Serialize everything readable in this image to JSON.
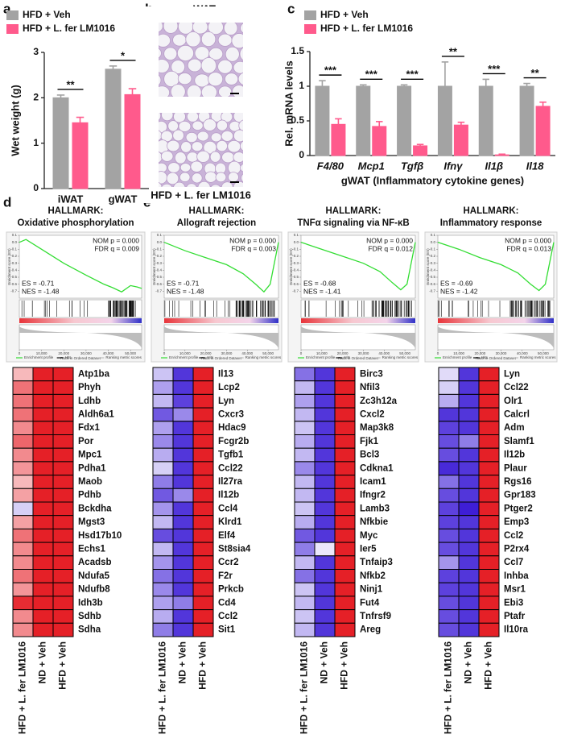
{
  "panel_labels": [
    "a",
    "b",
    "c",
    "d",
    "e"
  ],
  "histology": {
    "title": "gWAT",
    "images": [
      "HFD + Veh",
      "HFD + L. fer LM1016"
    ]
  },
  "chart_data": [
    {
      "type": "bar",
      "ylabel": "Wet weight (g)",
      "categories": [
        "iWAT",
        "gWAT"
      ],
      "series": [
        {
          "name": "HFD + Veh",
          "color": "#a3a3a3",
          "values": [
            2.0,
            2.63
          ],
          "errors": [
            0.06,
            0.07
          ]
        },
        {
          "name": "HFD + L. fer LM1016",
          "color": "#ff5a8c",
          "values": [
            1.45,
            2.07
          ],
          "errors": [
            0.12,
            0.13
          ]
        }
      ],
      "significance": [
        "**",
        "*"
      ],
      "ylim": [
        0,
        3
      ],
      "yticks": [
        0,
        1,
        2,
        3
      ]
    },
    {
      "type": "bar",
      "ylabel": "Rel. mRNA levels",
      "xlabel": "gWAT (Inflammatory cytokine genes)",
      "categories": [
        "F4/80",
        "Mcp1",
        "Tgfβ",
        "Ifnγ",
        "Il1β",
        "Il18"
      ],
      "category_style": "italic",
      "series": [
        {
          "name": "HFD + Veh",
          "color": "#a3a3a3",
          "values": [
            1.0,
            1.0,
            1.0,
            1.0,
            1.0,
            1.0
          ],
          "errors": [
            0.08,
            0.02,
            0.02,
            0.35,
            0.1,
            0.04
          ]
        },
        {
          "name": "HFD + L. fer LM1016",
          "color": "#ff5a8c",
          "values": [
            0.45,
            0.42,
            0.14,
            0.44,
            0.01,
            0.71
          ],
          "errors": [
            0.08,
            0.07,
            0.02,
            0.04,
            0.01,
            0.06
          ]
        }
      ],
      "significance": [
        "***",
        "***",
        "***",
        "**",
        "***",
        "**"
      ],
      "ylim": [
        0,
        1.5
      ],
      "yticks": [
        0,
        0.5,
        1,
        1.5
      ]
    },
    {
      "type": "line",
      "title": "HALLMARK:",
      "subtitle": "Oxidative phosphorylation",
      "annotations": [
        "NOM p = 0.000",
        "FDR q = 0.009",
        "ES = -0.71",
        "NES = -1.48"
      ],
      "ylabel": "Enrichment score (ES)",
      "xlabel": "Rank in Ordered Dataset",
      "legend": [
        "Enrichment profile",
        "Hits",
        "Ranking metric scores"
      ],
      "color": "#33dd33",
      "x": [
        0,
        3000,
        10000,
        20000,
        30000,
        38000,
        42000,
        46000,
        50000,
        53000,
        55000
      ],
      "y": [
        0,
        0.04,
        -0.1,
        -0.3,
        -0.47,
        -0.6,
        -0.65,
        -0.71,
        -0.62,
        -0.64,
        -0.66
      ],
      "xlim": [
        0,
        55000
      ],
      "ylim": [
        -0.8,
        0.1
      ],
      "xticks": [
        0,
        {
          "value": 10000,
          "label": "10,000"
        },
        {
          "value": 20000,
          "label": "20,000"
        },
        {
          "value": 30000,
          "label": "30,000"
        },
        {
          "value": 40000,
          "label": "40,000"
        },
        {
          "value": 50000,
          "label": "50,000"
        }
      ],
      "yticks": [
        0.1,
        {
          "value": 0,
          "label": "0.0"
        },
        -0.1,
        -0.2,
        -0.3,
        -0.4,
        -0.5,
        -0.6,
        -0.7
      ]
    },
    {
      "type": "line",
      "title": "HALLMARK:",
      "subtitle": "Allograft rejection",
      "annotations": [
        "NOM p = 0.000",
        "FDR q = 0.003",
        "ES = -0.71",
        "NES = -1.48"
      ],
      "ylabel": "Enrichment score (ES)",
      "xlabel": "Rank in Ordered Dataset",
      "legend": [
        "Enrichment profile",
        "Hits",
        "Ranking metric scores"
      ],
      "color": "#33dd33",
      "x": [
        0,
        10000,
        20000,
        30000,
        38000,
        44000,
        48000,
        51000,
        53000,
        55000
      ],
      "y": [
        0,
        -0.12,
        -0.22,
        -0.32,
        -0.45,
        -0.6,
        -0.71,
        -0.6,
        -0.3,
        0
      ],
      "xlim": [
        0,
        55000
      ],
      "ylim": [
        -0.8,
        0.1
      ],
      "xticks": [
        0,
        {
          "value": 10000,
          "label": "10,000"
        },
        {
          "value": 20000,
          "label": "20,000"
        },
        {
          "value": 30000,
          "label": "30,000"
        },
        {
          "value": 40000,
          "label": "40,000"
        },
        {
          "value": 50000,
          "label": "50,000"
        }
      ],
      "yticks": [
        0.1,
        {
          "value": 0,
          "label": "0.0"
        },
        -0.1,
        -0.2,
        -0.3,
        -0.4,
        -0.5,
        -0.6,
        -0.7
      ]
    },
    {
      "type": "line",
      "title": "HALLMARK:",
      "subtitle": "TNFα signaling via NF-κB",
      "annotations": [
        "NOM p = 0.000",
        "FDR q = 0.012",
        "ES = -0.68",
        "NES = -1.41"
      ],
      "ylabel": "Enrichment score (ES)",
      "xlabel": "Rank in Ordered Dataset",
      "legend": [
        "Enrichment profile",
        "Hits",
        "Ranking metric scores"
      ],
      "color": "#33dd33",
      "x": [
        0,
        10000,
        20000,
        30000,
        38000,
        44000,
        48000,
        51000,
        53000,
        55000
      ],
      "y": [
        0,
        -0.1,
        -0.2,
        -0.3,
        -0.42,
        -0.58,
        -0.68,
        -0.6,
        -0.3,
        0
      ],
      "xlim": [
        0,
        55000
      ],
      "ylim": [
        -0.8,
        0.1
      ],
      "xticks": [
        0,
        {
          "value": 10000,
          "label": "10,000"
        },
        {
          "value": 20000,
          "label": "20,000"
        },
        {
          "value": 30000,
          "label": "30,000"
        },
        {
          "value": 40000,
          "label": "40,000"
        },
        {
          "value": 50000,
          "label": "50,000"
        }
      ],
      "yticks": [
        0.1,
        {
          "value": 0,
          "label": "0.0"
        },
        -0.1,
        -0.2,
        -0.3,
        -0.4,
        -0.5,
        -0.6,
        -0.7
      ]
    },
    {
      "type": "line",
      "title": "HALLMARK:",
      "subtitle": "Inflammatory response",
      "annotations": [
        "NOM p = 0.000",
        "FDR q = 0.013",
        "ES = -0.69",
        "NES = -1.42"
      ],
      "ylabel": "Enrichment score (ES)",
      "xlabel": "Rank in Ordered Dataset",
      "legend": [
        "Enrichment profile",
        "Hits",
        "Ranking metric scores"
      ],
      "color": "#33dd33",
      "x": [
        0,
        10000,
        20000,
        30000,
        38000,
        44000,
        48000,
        51000,
        53000,
        55000
      ],
      "y": [
        0,
        -0.1,
        -0.22,
        -0.32,
        -0.44,
        -0.6,
        -0.69,
        -0.6,
        -0.3,
        0
      ],
      "xlim": [
        0,
        55000
      ],
      "ylim": [
        -0.8,
        0.1
      ],
      "xticks": [
        0,
        {
          "value": 10000,
          "label": "10,000"
        },
        {
          "value": 20000,
          "label": "20,000"
        },
        {
          "value": 30000,
          "label": "30,000"
        },
        {
          "value": 40000,
          "label": "40,000"
        },
        {
          "value": 50000,
          "label": "50,000"
        }
      ],
      "yticks": [
        0.1,
        {
          "value": 0,
          "label": "0.0"
        },
        -0.1,
        -0.2,
        -0.3,
        -0.4,
        -0.5,
        -0.6,
        -0.7
      ]
    },
    {
      "type": "heatmap",
      "columns": [
        "HFD + L. fer LM1016",
        "ND + Veh",
        "HFD + Veh"
      ],
      "rows": [
        "Atp1ba",
        "Phyh",
        "Ldhb",
        "Aldh6a1",
        "Fdx1",
        "Por",
        "Mpc1",
        "Pdha1",
        "Maob",
        "Pdhb",
        "Bckdha",
        "Mgst3",
        "Hsd17b10",
        "Echs1",
        "Acadsb",
        "Ndufa5",
        "Ndufb8",
        "Idh3b",
        "Sdhb",
        "Sdha"
      ],
      "values": [
        [
          0.3,
          0.95,
          0.95
        ],
        [
          0.6,
          0.95,
          0.95
        ],
        [
          0.6,
          0.95,
          0.95
        ],
        [
          0.6,
          0.95,
          0.95
        ],
        [
          0.5,
          0.95,
          0.95
        ],
        [
          0.65,
          0.95,
          0.95
        ],
        [
          0.5,
          0.95,
          0.95
        ],
        [
          0.45,
          0.95,
          0.95
        ],
        [
          0.3,
          0.95,
          0.95
        ],
        [
          0.4,
          0.95,
          0.95
        ],
        [
          -0.2,
          0.95,
          0.95
        ],
        [
          0.4,
          0.95,
          0.95
        ],
        [
          0.6,
          0.95,
          0.95
        ],
        [
          0.5,
          0.95,
          0.95
        ],
        [
          0.5,
          0.95,
          0.95
        ],
        [
          0.6,
          0.95,
          0.95
        ],
        [
          0.45,
          0.95,
          0.95
        ],
        [
          0.9,
          0.95,
          0.95
        ],
        [
          0.5,
          0.95,
          0.95
        ],
        [
          0.5,
          0.95,
          0.95
        ]
      ]
    },
    {
      "type": "heatmap",
      "columns": [
        "HFD + L. fer LM1016",
        "ND + Veh",
        "HFD + Veh"
      ],
      "rows": [
        "Il13",
        "Lcp2",
        "Lyn",
        "Cxcr3",
        "Hdac9",
        "Fcgr2b",
        "Tgfb1",
        "Ccl22",
        "Il27ra",
        "Il12b",
        "Ccl4",
        "Klrd1",
        "Elf4",
        "St8sia4",
        "Ccr2",
        "F2r",
        "Prkcb",
        "Cd4",
        "Ccl2",
        "Sit1"
      ],
      "values": [
        [
          -0.25,
          -0.85,
          0.95
        ],
        [
          -0.4,
          -0.85,
          0.95
        ],
        [
          -0.3,
          -0.8,
          0.95
        ],
        [
          -0.7,
          -0.5,
          0.95
        ],
        [
          -0.4,
          -0.85,
          0.95
        ],
        [
          -0.5,
          -0.85,
          0.95
        ],
        [
          -0.35,
          -0.85,
          0.95
        ],
        [
          -0.2,
          -0.85,
          0.95
        ],
        [
          -0.55,
          -0.85,
          0.95
        ],
        [
          -0.7,
          -0.5,
          0.95
        ],
        [
          -0.45,
          -0.85,
          0.95
        ],
        [
          -0.3,
          -0.85,
          0.95
        ],
        [
          -0.75,
          -0.85,
          0.95
        ],
        [
          -0.3,
          -0.85,
          0.95
        ],
        [
          -0.45,
          -0.85,
          0.95
        ],
        [
          -0.6,
          -0.85,
          0.95
        ],
        [
          -0.5,
          -0.85,
          0.95
        ],
        [
          -0.4,
          -0.55,
          0.95
        ],
        [
          -0.35,
          -0.85,
          0.95
        ],
        [
          -0.55,
          -0.85,
          0.95
        ]
      ]
    },
    {
      "type": "heatmap",
      "columns": [
        "HFD + L. fer LM1016",
        "ND + Veh",
        "HFD + Veh"
      ],
      "rows": [
        "Birc3",
        "Nfil3",
        "Zc3h12a",
        "Cxcl2",
        "Map3k8",
        "Fjk1",
        "Bcl3",
        "Cdkna1",
        "Icam1",
        "Ifngr2",
        "Lamb3",
        "Nfkbie",
        "Myc",
        "Ier5",
        "Tnfaip3",
        "Nfkb2",
        "Ninj1",
        "Fut4",
        "Tnfrsf9",
        "Areg"
      ],
      "values": [
        [
          -0.6,
          -0.85,
          0.95
        ],
        [
          -0.3,
          -0.85,
          0.95
        ],
        [
          -0.4,
          -0.85,
          0.95
        ],
        [
          -0.3,
          -0.85,
          0.95
        ],
        [
          -0.25,
          -0.85,
          0.95
        ],
        [
          -0.35,
          -0.85,
          0.95
        ],
        [
          -0.3,
          -0.85,
          0.95
        ],
        [
          -0.5,
          -0.85,
          0.95
        ],
        [
          -0.3,
          -0.85,
          0.95
        ],
        [
          -0.3,
          -0.85,
          0.95
        ],
        [
          -0.25,
          -0.85,
          0.95
        ],
        [
          -0.35,
          -0.85,
          0.95
        ],
        [
          -0.7,
          -0.85,
          0.95
        ],
        [
          -0.55,
          -0.1,
          0.95
        ],
        [
          -0.3,
          -0.85,
          0.95
        ],
        [
          -0.6,
          -0.85,
          0.95
        ],
        [
          -0.25,
          -0.85,
          0.95
        ],
        [
          -0.3,
          -0.85,
          0.95
        ],
        [
          -0.25,
          -0.85,
          0.95
        ],
        [
          -0.3,
          -0.85,
          0.95
        ]
      ]
    },
    {
      "type": "heatmap",
      "columns": [
        "HFD + L. fer LM1016",
        "ND + Veh",
        "HFD + Veh"
      ],
      "rows": [
        "Lyn",
        "Ccl22",
        "Olr1",
        "Calcrl",
        "Adm",
        "Slamf1",
        "Il12b",
        "Plaur",
        "Rgs16",
        "Gpr183",
        "Ptger2",
        "Emp3",
        "Ccl2",
        "P2rx4",
        "Ccl7",
        "Inhba",
        "Msr1",
        "Ebi3",
        "Ptafr",
        "Il10ra"
      ],
      "values": [
        [
          -0.15,
          -0.85,
          0.95
        ],
        [
          -0.2,
          -0.85,
          0.95
        ],
        [
          -0.35,
          -0.85,
          0.95
        ],
        [
          -0.85,
          -0.85,
          0.95
        ],
        [
          -0.8,
          -0.85,
          0.95
        ],
        [
          -0.75,
          -0.55,
          0.95
        ],
        [
          -0.75,
          -0.85,
          0.95
        ],
        [
          -0.9,
          -0.85,
          0.95
        ],
        [
          -0.6,
          -0.85,
          0.95
        ],
        [
          -0.75,
          -0.85,
          0.95
        ],
        [
          -0.8,
          -0.95,
          0.95
        ],
        [
          -0.8,
          -0.85,
          0.95
        ],
        [
          -0.75,
          -0.85,
          0.95
        ],
        [
          -0.75,
          -0.85,
          0.95
        ],
        [
          -0.45,
          -0.85,
          0.95
        ],
        [
          -0.8,
          -0.85,
          0.95
        ],
        [
          -0.8,
          -0.85,
          0.95
        ],
        [
          -0.75,
          -0.85,
          0.95
        ],
        [
          -0.75,
          -0.85,
          0.95
        ],
        [
          -0.75,
          -0.85,
          0.95
        ]
      ]
    }
  ]
}
